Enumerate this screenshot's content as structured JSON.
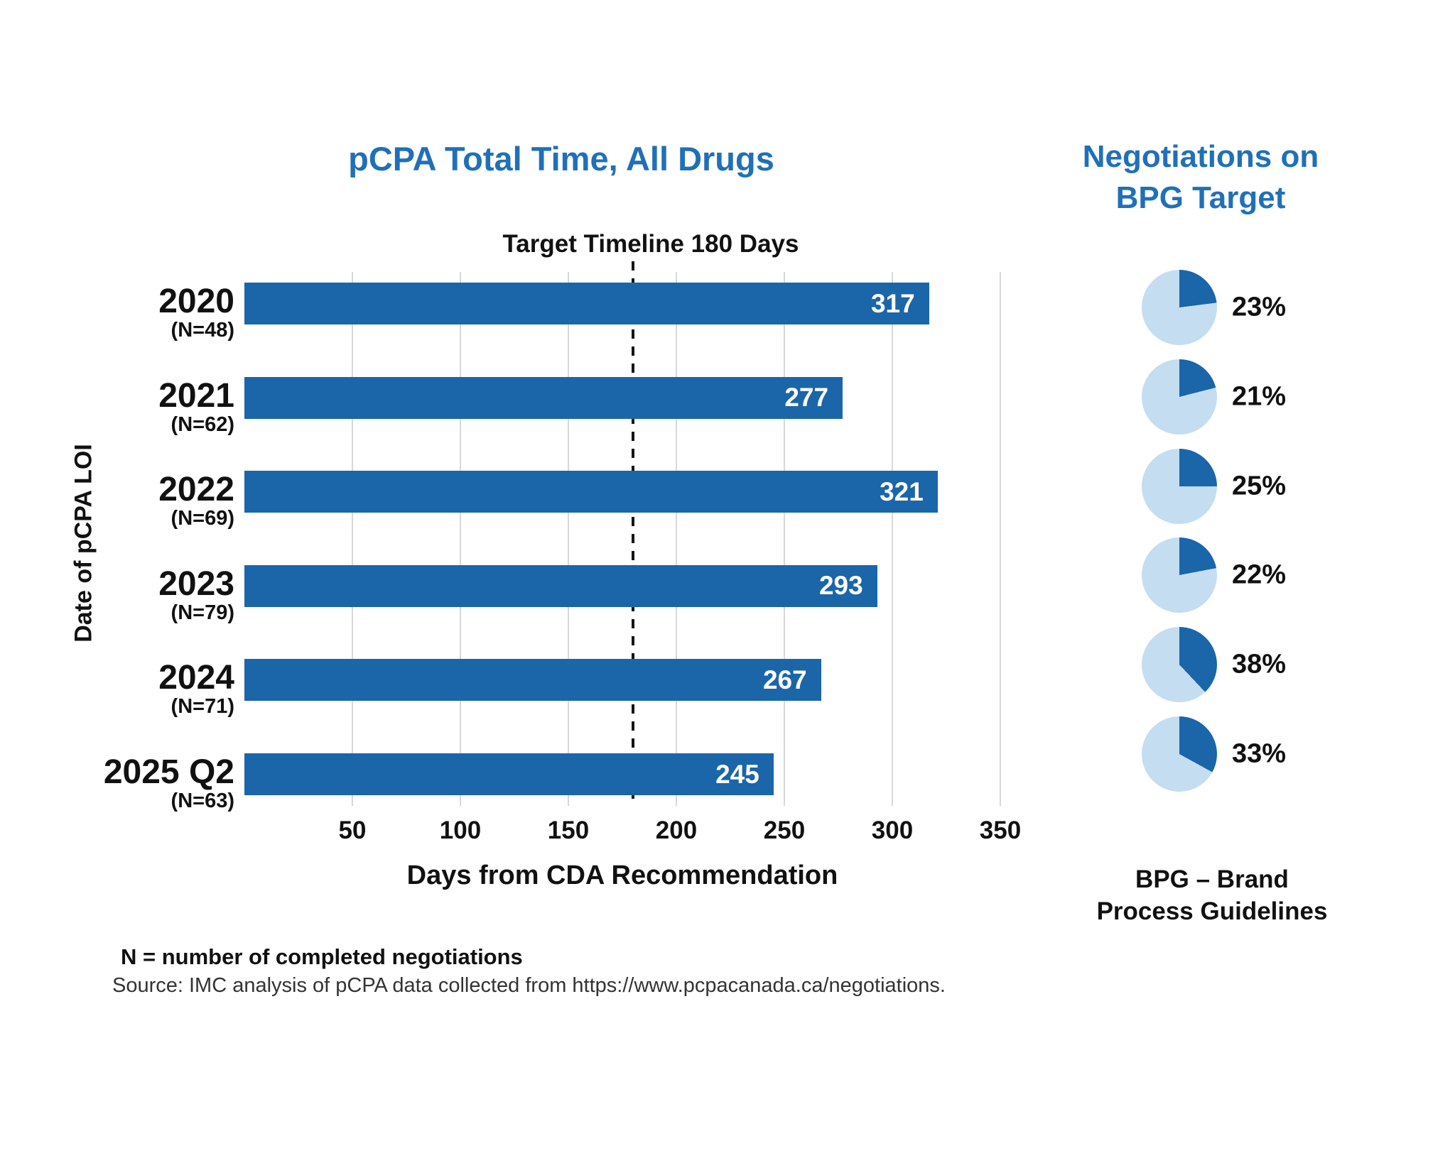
{
  "chart_data": [
    {
      "type": "bar",
      "orientation": "horizontal",
      "title": "pCPA Total Time, All Drugs",
      "categories": [
        "2020",
        "2021",
        "2022",
        "2023",
        "2024",
        "2025 Q2"
      ],
      "category_notes": [
        "(N=48)",
        "(N=62)",
        "(N=69)",
        "(N=79)",
        "(N=71)",
        "(N=63)"
      ],
      "values": [
        317,
        277,
        321,
        293,
        267,
        245
      ],
      "xlabel": "Days from CDA Recommendation",
      "ylabel": "Date of pCPA LOI",
      "xlim": [
        0,
        350
      ],
      "xticks": [
        50,
        100,
        150,
        200,
        250,
        300,
        350
      ],
      "grid": "vertical-only",
      "target_line": {
        "value": 180,
        "label": "Target Timeline 180 Days",
        "style": "dashed"
      },
      "bar_color": "#1b65a9",
      "value_label_color": "#ffffff"
    },
    {
      "type": "pie",
      "title": "Negotiations on\nBPG Target",
      "values": [
        23,
        21,
        25,
        22,
        38,
        33
      ],
      "labels": [
        "23%",
        "21%",
        "25%",
        "22%",
        "38%",
        "33%"
      ],
      "slice_color": "#1b65a9",
      "remainder_color": "#c5ddf0",
      "footnote": "BPG – Brand\nProcess Guidelines"
    }
  ],
  "footnotes": {
    "n_note": "N = number of completed negotiations",
    "source": "Source: IMC analysis of pCPA data collected from https://www.pcpacanada.ca/negotiations."
  },
  "colors": {
    "heading_blue": "#2070b8",
    "bar_blue": "#1b65a9",
    "pie_remainder_blue": "#c5ddf0",
    "gridline_gray": "#d8d8d8",
    "text_black": "#111111"
  }
}
